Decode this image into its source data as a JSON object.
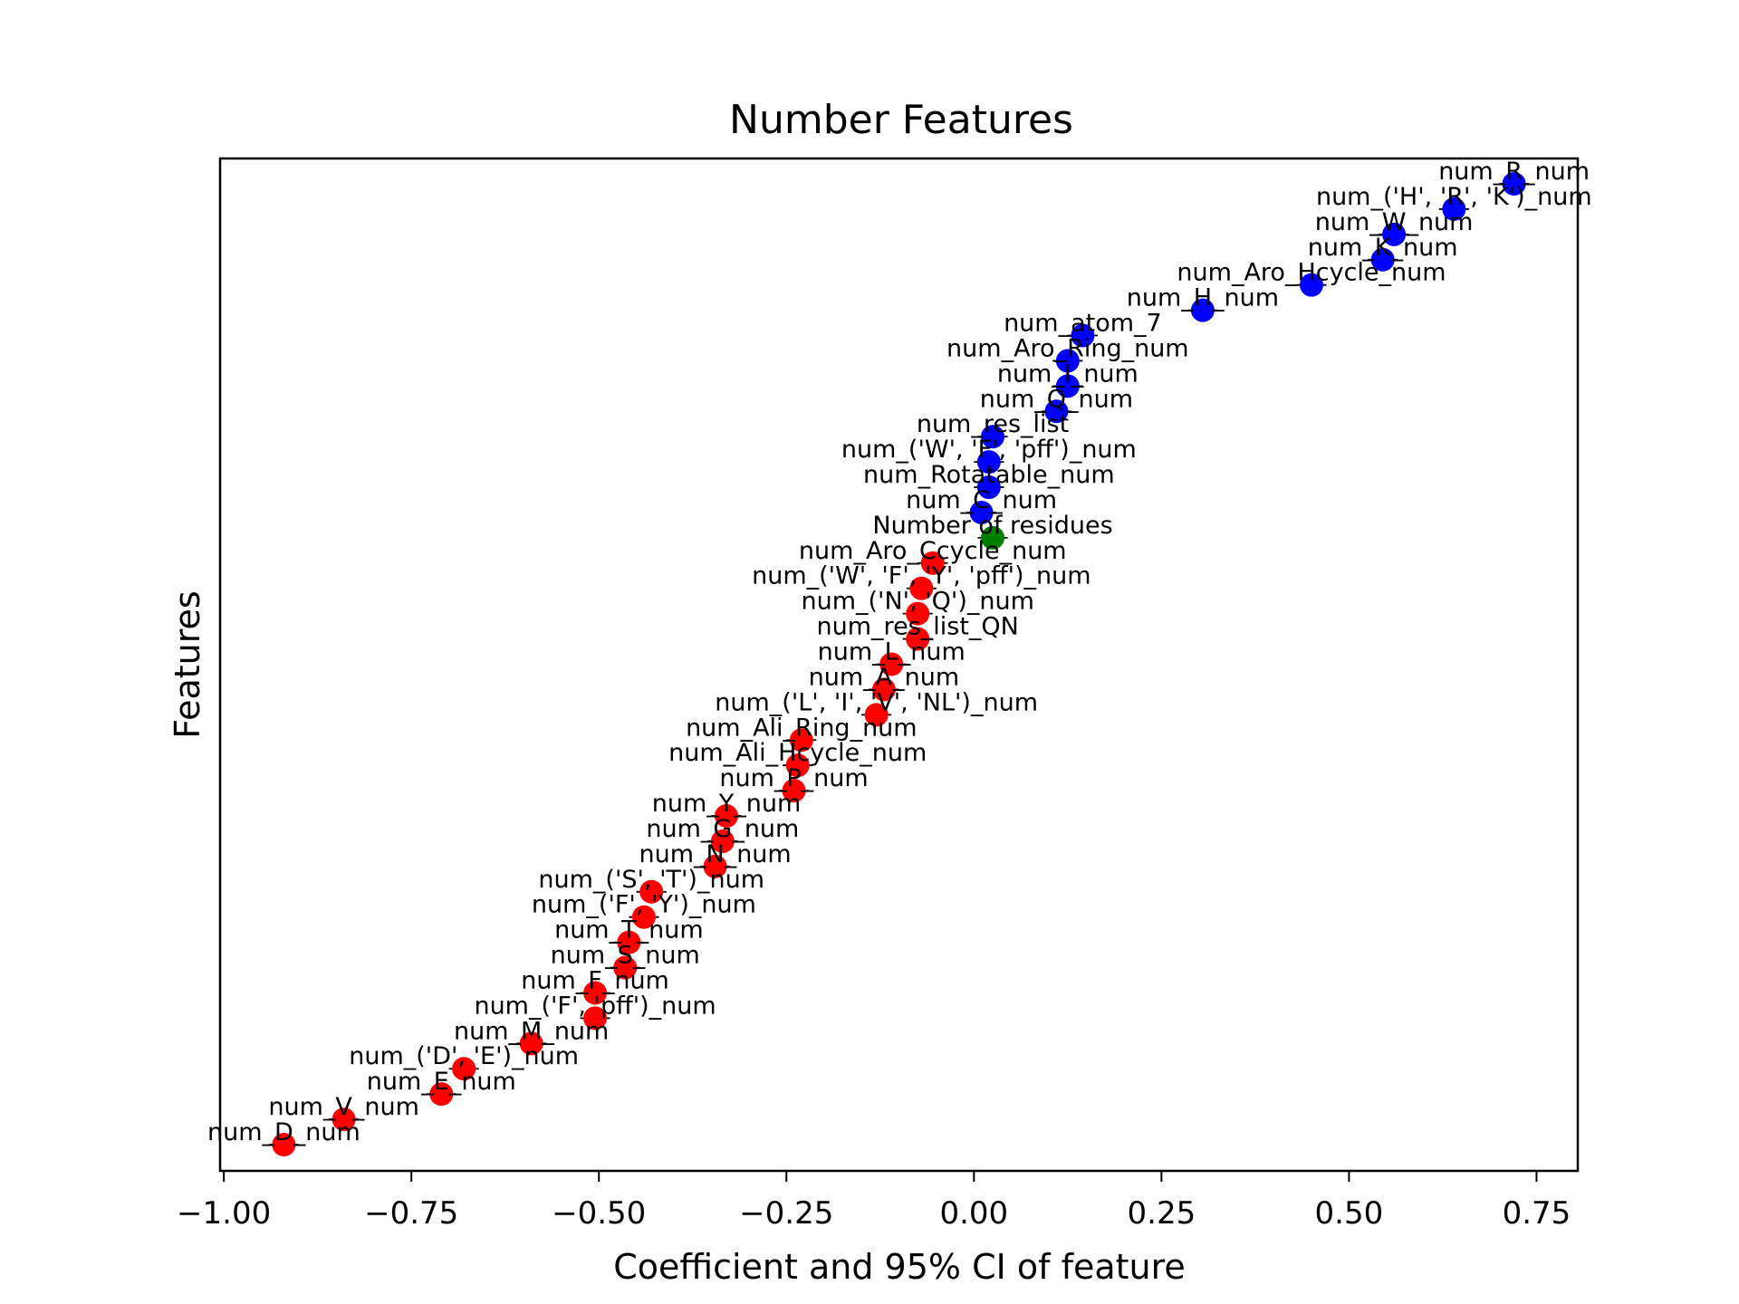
{
  "chart_data": {
    "type": "scatter",
    "title": "Number Features",
    "xlabel": "Coefficient and 95% CI of feature",
    "ylabel": "Features",
    "xlim": [
      -1.005,
      0.805
    ],
    "xticks": [
      -1.0,
      -0.75,
      -0.5,
      -0.25,
      0.0,
      0.25,
      0.5,
      0.75
    ],
    "xtick_labels": [
      "−1.00",
      "−0.75",
      "−0.50",
      "−0.25",
      "0.00",
      "0.25",
      "0.50",
      "0.75"
    ],
    "grid": false,
    "colors": {
      "positive": "#0000ff",
      "neutral": "#008000",
      "negative": "#ff0000"
    },
    "points": [
      {
        "label": "num_R_num",
        "value": 0.72,
        "ci": [
          0.7,
          0.74
        ],
        "color": "#0000ff"
      },
      {
        "label": "num_('H', 'R', 'K')_num",
        "value": 0.64,
        "ci": [
          0.62,
          0.66
        ],
        "color": "#0000ff"
      },
      {
        "label": "num_W_num",
        "value": 0.56,
        "ci": [
          0.54,
          0.58
        ],
        "color": "#0000ff"
      },
      {
        "label": "num_K_num",
        "value": 0.545,
        "ci": [
          0.525,
          0.565
        ],
        "color": "#0000ff"
      },
      {
        "label": "num_Aro_Hcycle_num",
        "value": 0.45,
        "ci": [
          0.43,
          0.47
        ],
        "color": "#0000ff"
      },
      {
        "label": "num_H_num",
        "value": 0.305,
        "ci": [
          0.285,
          0.325
        ],
        "color": "#0000ff"
      },
      {
        "label": "num_atom_7",
        "value": 0.145,
        "ci": [
          0.125,
          0.165
        ],
        "color": "#0000ff"
      },
      {
        "label": "num_Aro_Ring_num",
        "value": 0.125,
        "ci": [
          0.105,
          0.145
        ],
        "color": "#0000ff"
      },
      {
        "label": "num_I_num",
        "value": 0.125,
        "ci": [
          0.105,
          0.145
        ],
        "color": "#0000ff"
      },
      {
        "label": "num_Q_num",
        "value": 0.11,
        "ci": [
          0.09,
          0.13
        ],
        "color": "#0000ff"
      },
      {
        "label": "num_res_list",
        "value": 0.025,
        "ci": [
          0.005,
          0.045
        ],
        "color": "#0000ff"
      },
      {
        "label": "num_('W', 'F', 'pff')_num",
        "value": 0.02,
        "ci": [
          0.0,
          0.04
        ],
        "color": "#0000ff"
      },
      {
        "label": "num_Rotatable_num",
        "value": 0.02,
        "ci": [
          0.0,
          0.04
        ],
        "color": "#0000ff"
      },
      {
        "label": "num_C_num",
        "value": 0.01,
        "ci": [
          -0.01,
          0.03
        ],
        "color": "#0000ff"
      },
      {
        "label": "Number of residues",
        "value": 0.025,
        "ci": [
          0.005,
          0.045
        ],
        "color": "#008000"
      },
      {
        "label": "num_Aro_Ccycle_num",
        "value": -0.055,
        "ci": [
          -0.075,
          -0.035
        ],
        "color": "#ff0000"
      },
      {
        "label": "num_('W', 'F', 'Y', 'pff')_num",
        "value": -0.07,
        "ci": [
          -0.09,
          -0.05
        ],
        "color": "#ff0000"
      },
      {
        "label": "num_('N', 'Q')_num",
        "value": -0.075,
        "ci": [
          -0.095,
          -0.055
        ],
        "color": "#ff0000"
      },
      {
        "label": "num_res_list_QN",
        "value": -0.075,
        "ci": [
          -0.095,
          -0.055
        ],
        "color": "#ff0000"
      },
      {
        "label": "num_L_num",
        "value": -0.11,
        "ci": [
          -0.13,
          -0.09
        ],
        "color": "#ff0000"
      },
      {
        "label": "num_A_num",
        "value": -0.12,
        "ci": [
          -0.14,
          -0.1
        ],
        "color": "#ff0000"
      },
      {
        "label": "num_('L', 'I', 'V', 'NL')_num",
        "value": -0.13,
        "ci": [
          -0.15,
          -0.11
        ],
        "color": "#ff0000"
      },
      {
        "label": "num_Ali_Ring_num",
        "value": -0.23,
        "ci": [
          -0.25,
          -0.21
        ],
        "color": "#ff0000"
      },
      {
        "label": "num_Ali_Hcycle_num",
        "value": -0.235,
        "ci": [
          -0.255,
          -0.215
        ],
        "color": "#ff0000"
      },
      {
        "label": "num_P_num",
        "value": -0.24,
        "ci": [
          -0.26,
          -0.22
        ],
        "color": "#ff0000"
      },
      {
        "label": "num_Y_num",
        "value": -0.33,
        "ci": [
          -0.35,
          -0.31
        ],
        "color": "#ff0000"
      },
      {
        "label": "num_G_num",
        "value": -0.335,
        "ci": [
          -0.355,
          -0.315
        ],
        "color": "#ff0000"
      },
      {
        "label": "num_N_num",
        "value": -0.345,
        "ci": [
          -0.365,
          -0.325
        ],
        "color": "#ff0000"
      },
      {
        "label": "num_('S', 'T')_num",
        "value": -0.43,
        "ci": [
          -0.45,
          -0.41
        ],
        "color": "#ff0000"
      },
      {
        "label": "num_('F', 'Y')_num",
        "value": -0.44,
        "ci": [
          -0.46,
          -0.42
        ],
        "color": "#ff0000"
      },
      {
        "label": "num_T_num",
        "value": -0.46,
        "ci": [
          -0.48,
          -0.44
        ],
        "color": "#ff0000"
      },
      {
        "label": "num_S_num",
        "value": -0.465,
        "ci": [
          -0.485,
          -0.445
        ],
        "color": "#ff0000"
      },
      {
        "label": "num_F_num",
        "value": -0.505,
        "ci": [
          -0.525,
          -0.485
        ],
        "color": "#ff0000"
      },
      {
        "label": "num_('F', 'pff')_num",
        "value": -0.505,
        "ci": [
          -0.525,
          -0.485
        ],
        "color": "#ff0000"
      },
      {
        "label": "num_M_num",
        "value": -0.59,
        "ci": [
          -0.61,
          -0.57
        ],
        "color": "#ff0000"
      },
      {
        "label": "num_('D', 'E')_num",
        "value": -0.68,
        "ci": [
          -0.7,
          -0.66
        ],
        "color": "#ff0000"
      },
      {
        "label": "num_E_num",
        "value": -0.71,
        "ci": [
          -0.73,
          -0.69
        ],
        "color": "#ff0000"
      },
      {
        "label": "num_V_num",
        "value": -0.84,
        "ci": [
          -0.86,
          -0.82
        ],
        "color": "#ff0000"
      },
      {
        "label": "num_D_num",
        "value": -0.92,
        "ci": [
          -0.94,
          -0.9
        ],
        "color": "#ff0000"
      }
    ]
  }
}
